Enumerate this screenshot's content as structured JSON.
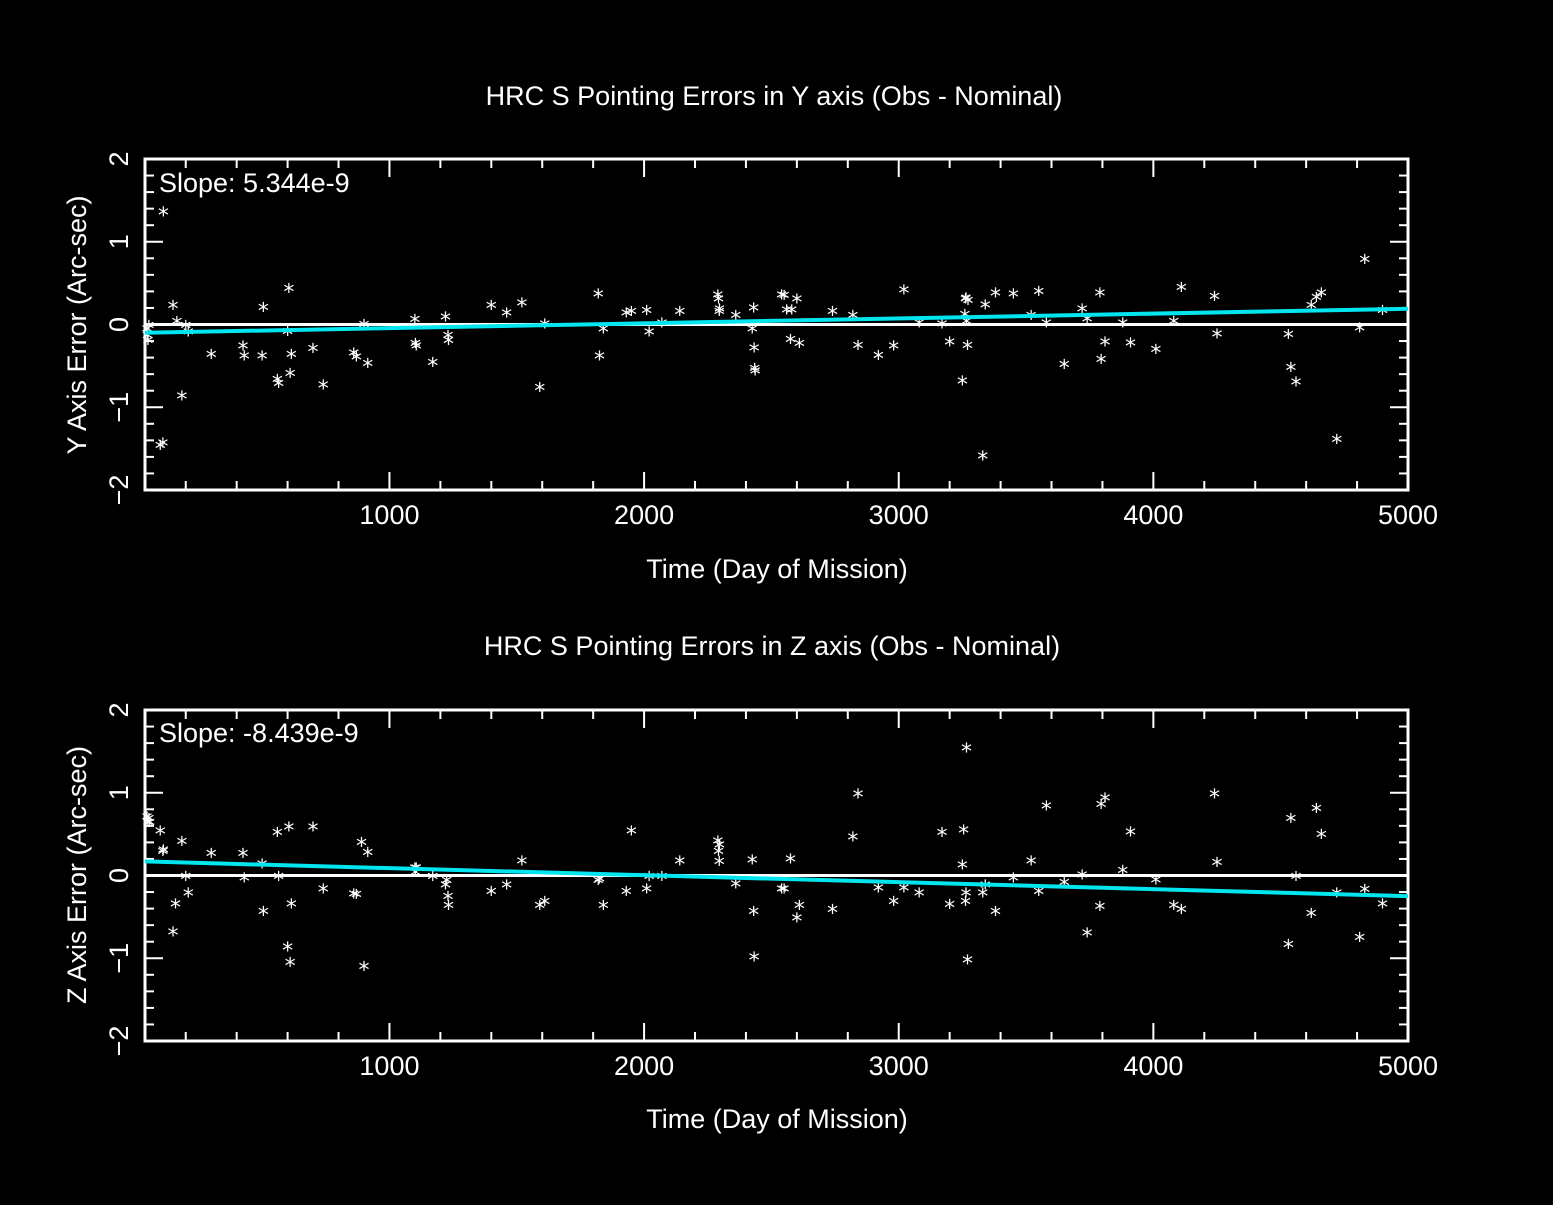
{
  "colors": {
    "background": "#000000",
    "foreground": "#ffffff",
    "fit_line": "#00e5ee",
    "zero_line": "#ffffff"
  },
  "chart_data": [
    {
      "type": "scatter",
      "title": "HRC S Pointing Errors in Y axis (Obs - Nominal)",
      "xlabel": "Time (Day of Mission)",
      "ylabel": "Y Axis Error (Arc-sec)",
      "xlim": [
        40,
        5000
      ],
      "ylim": [
        -2,
        2
      ],
      "xticks": [
        1000,
        2000,
        3000,
        4000,
        5000
      ],
      "yticks": [
        -2,
        -1,
        0,
        1,
        2
      ],
      "annotation": "Slope: 5.344e-9",
      "marker": "*",
      "reference_line": {
        "y": 0,
        "color": "#ffffff"
      },
      "fit_line": {
        "x": [
          40,
          5000
        ],
        "y": [
          -0.1,
          0.19
        ],
        "color": "#00e5ee"
      },
      "series": [
        {
          "x": [
            48,
            50,
            52,
            55,
            100,
            110,
            112,
            150,
            165,
            185,
            200,
            210,
            300,
            425,
            430,
            500,
            505,
            560,
            565,
            600,
            605,
            610,
            615,
            700,
            740,
            860,
            870,
            900,
            915,
            1100,
            1102,
            1105,
            1170,
            1220,
            1230,
            1232,
            1400,
            1460,
            1520,
            1590,
            1610,
            1820,
            1825,
            1840,
            1930,
            1950,
            2010,
            2020,
            2070,
            2140,
            2290,
            2292,
            2295,
            2296,
            2360,
            2425,
            2430,
            2432,
            2434,
            2436,
            2540,
            2550,
            2560,
            2575,
            2580,
            2600,
            2610,
            2740,
            2820,
            2840,
            2920,
            2980,
            3020,
            3080,
            3170,
            3200,
            3250,
            3260,
            3262,
            3264,
            3266,
            3270,
            3272,
            3330,
            3340,
            3380,
            3450,
            3520,
            3550,
            3580,
            3650,
            3720,
            3740,
            3790,
            3795,
            3810,
            3880,
            3910,
            4010,
            4080,
            4110,
            4240,
            4250,
            4530,
            4540,
            4560,
            4620,
            4640,
            4660,
            4720,
            4810,
            4830,
            4900
          ],
          "y": [
            -0.04,
            -0.12,
            -0.18,
            0.0,
            -1.45,
            -1.42,
            1.37,
            0.24,
            0.05,
            -0.85,
            0.0,
            -0.08,
            -0.35,
            -0.25,
            -0.37,
            -0.37,
            0.22,
            -0.65,
            -0.7,
            -0.07,
            0.45,
            -0.58,
            -0.35,
            -0.28,
            -0.72,
            -0.33,
            -0.38,
            0.01,
            -0.46,
            0.07,
            -0.22,
            -0.25,
            -0.45,
            0.1,
            -0.12,
            -0.18,
            0.24,
            0.15,
            0.27,
            -0.75,
            0.02,
            0.38,
            -0.37,
            -0.04,
            0.15,
            0.17,
            0.18,
            -0.08,
            0.03,
            0.17,
            0.37,
            0.32,
            0.17,
            0.2,
            0.12,
            -0.04,
            0.21,
            -0.27,
            -0.52,
            -0.55,
            0.37,
            0.36,
            0.19,
            -0.17,
            0.19,
            0.32,
            -0.22,
            0.17,
            0.12,
            -0.24,
            -0.36,
            -0.25,
            0.43,
            0.03,
            0.02,
            -0.2,
            -0.67,
            0.13,
            0.32,
            0.33,
            0.05,
            -0.24,
            0.3,
            -1.58,
            0.25,
            0.39,
            0.38,
            0.12,
            0.41,
            0.03,
            -0.47,
            0.2,
            0.08,
            0.39,
            -0.41,
            -0.2,
            0.03,
            -0.21,
            -0.29,
            0.05,
            0.46,
            0.35,
            -0.1,
            -0.11,
            -0.51,
            -0.68,
            0.24,
            0.34,
            0.39,
            -1.38,
            -0.03,
            0.8,
            0.18
          ]
        }
      ]
    },
    {
      "type": "scatter",
      "title": "HRC S Pointing Errors in  Z axis (Obs - Nominal)",
      "xlabel": "Time (Day of Mission)",
      "ylabel": "Z Axis Error (Arc-sec)",
      "xlim": [
        40,
        5000
      ],
      "ylim": [
        -2,
        2
      ],
      "xticks": [
        1000,
        2000,
        3000,
        4000,
        5000
      ],
      "yticks": [
        -2,
        -1,
        0,
        1,
        2
      ],
      "annotation": "Slope: -8.439e-9",
      "marker": "*",
      "reference_line": {
        "y": 0,
        "color": "#ffffff"
      },
      "fit_line": {
        "x": [
          40,
          5000
        ],
        "y": [
          0.17,
          -0.25
        ],
        "color": "#00e5ee"
      },
      "series": [
        {
          "x": [
            48,
            52,
            55,
            58,
            100,
            110,
            112,
            150,
            160,
            185,
            200,
            210,
            300,
            425,
            430,
            500,
            505,
            560,
            565,
            600,
            605,
            610,
            615,
            700,
            740,
            860,
            870,
            890,
            900,
            915,
            1100,
            1102,
            1105,
            1170,
            1220,
            1225,
            1230,
            1232,
            1400,
            1460,
            1520,
            1590,
            1610,
            1820,
            1825,
            1840,
            1930,
            1950,
            2010,
            2020,
            2070,
            2140,
            2290,
            2292,
            2295,
            2296,
            2360,
            2425,
            2430,
            2432,
            2540,
            2550,
            2575,
            2600,
            2610,
            2740,
            2820,
            2840,
            2920,
            2980,
            3020,
            3080,
            3170,
            3200,
            3250,
            3255,
            3262,
            3264,
            3266,
            3270,
            3330,
            3340,
            3380,
            3450,
            3520,
            3550,
            3580,
            3650,
            3720,
            3740,
            3790,
            3795,
            3810,
            3880,
            3910,
            4010,
            4080,
            4110,
            4240,
            4250,
            4530,
            4540,
            4560,
            4620,
            4640,
            4660,
            4720,
            4810,
            4830,
            4900
          ],
          "y": [
            0.72,
            0.65,
            0.7,
            0.65,
            0.55,
            0.3,
            0.32,
            -0.67,
            -0.33,
            0.42,
            0.0,
            -0.2,
            0.28,
            0.28,
            -0.02,
            0.15,
            -0.42,
            0.53,
            0.0,
            -0.85,
            0.6,
            -1.04,
            -0.33,
            0.6,
            -0.15,
            -0.21,
            -0.22,
            0.41,
            -1.09,
            0.29,
            0.1,
            0.05,
            0.1,
            0.0,
            -0.1,
            -0.05,
            -0.24,
            -0.35,
            -0.18,
            -0.1,
            0.19,
            -0.35,
            -0.3,
            -0.05,
            -0.03,
            -0.35,
            -0.18,
            0.55,
            -0.15,
            0.0,
            0.0,
            0.19,
            0.43,
            0.3,
            0.18,
            0.38,
            -0.09,
            0.2,
            -0.42,
            -0.97,
            -0.15,
            -0.15,
            0.21,
            -0.5,
            -0.35,
            -0.4,
            0.48,
            1.0,
            -0.14,
            -0.3,
            -0.14,
            -0.2,
            0.53,
            -0.34,
            0.14,
            0.56,
            -0.3,
            -0.2,
            1.55,
            -1.01,
            -0.2,
            -0.1,
            -0.42,
            -0.02,
            0.19,
            -0.18,
            0.85,
            -0.07,
            0.02,
            -0.68,
            -0.36,
            0.87,
            0.95,
            0.07,
            0.54,
            -0.04,
            -0.35,
            -0.4,
            1.0,
            0.17,
            -0.82,
            0.7,
            0.0,
            -0.45,
            0.82,
            0.51,
            -0.2,
            -0.74,
            -0.16,
            -0.33
          ]
        }
      ]
    }
  ]
}
